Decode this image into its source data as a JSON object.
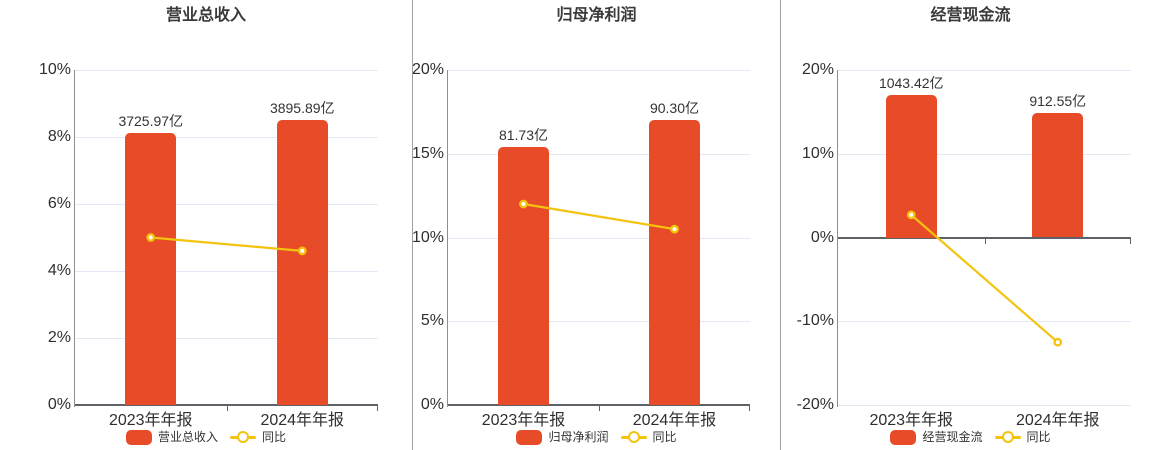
{
  "colors": {
    "bar": "#E74B27",
    "line": "#F4C30D",
    "grid_line": "#E2E9F5",
    "axis_line": "#8F8F8F",
    "zero_axis_line": "#5E6266",
    "divider": "#A0A0A0",
    "text_primary": "#2F2F2F",
    "text_title": "#3A3A3A"
  },
  "chart_data": [
    {
      "type": "bar+line",
      "title": "营业总收入",
      "categories": [
        "2023年年报",
        "2024年年报"
      ],
      "bar_series": {
        "name": "营业总收入",
        "unit": "亿",
        "values": [
          3725.97,
          3895.89
        ],
        "labels": [
          "3725.97亿",
          "3895.89亿"
        ]
      },
      "yoy_series": {
        "name": "同比",
        "unit": "%",
        "values_pct": [
          5.0,
          4.6
        ]
      },
      "y_axis": {
        "min": 0,
        "max": 10,
        "tick_step": 2,
        "unit": "%",
        "tick_labels": [
          "10%",
          "8%",
          "6%",
          "4%",
          "2%",
          "0%"
        ]
      },
      "legend": [
        "营业总收入",
        "同比"
      ],
      "legend_position": "bottom",
      "grid": true
    },
    {
      "type": "bar+line",
      "title": "归母净利润",
      "categories": [
        "2023年年报",
        "2024年年报"
      ],
      "bar_series": {
        "name": "归母净利润",
        "unit": "亿",
        "values": [
          81.73,
          90.3
        ],
        "labels": [
          "81.73亿",
          "90.30亿"
        ]
      },
      "yoy_series": {
        "name": "同比",
        "unit": "%",
        "values_pct": [
          12.0,
          10.5
        ]
      },
      "y_axis": {
        "min": 0,
        "max": 20,
        "tick_step": 5,
        "unit": "%",
        "tick_labels": [
          "20%",
          "15%",
          "10%",
          "5%",
          "0%"
        ]
      },
      "legend": [
        "归母净利润",
        "同比"
      ],
      "legend_position": "bottom",
      "grid": true
    },
    {
      "type": "bar+line",
      "title": "经营现金流",
      "categories": [
        "2023年年报",
        "2024年年报"
      ],
      "bar_series": {
        "name": "经营现金流",
        "unit": "亿",
        "values": [
          1043.42,
          912.55
        ],
        "labels": [
          "1043.42亿",
          "912.55亿"
        ]
      },
      "yoy_series": {
        "name": "同比",
        "unit": "%",
        "values_pct": [
          2.7,
          -12.5
        ]
      },
      "y_axis": {
        "min": -20,
        "max": 20,
        "tick_step": 10,
        "unit": "%",
        "tick_labels": [
          "20%",
          "10%",
          "0%",
          "-10%",
          "-20%"
        ]
      },
      "legend": [
        "经营现金流",
        "同比"
      ],
      "legend_position": "bottom",
      "grid": true
    }
  ]
}
